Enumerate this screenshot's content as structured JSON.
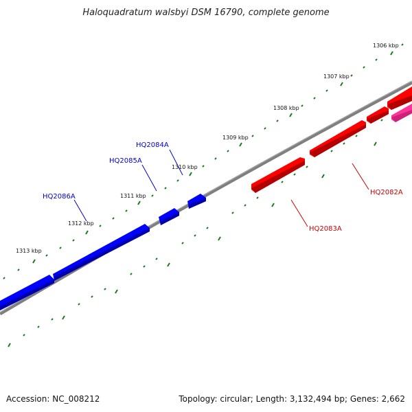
{
  "title": "Haloquadratum walsbyi DSM 16790, complete genome",
  "footer": {
    "accession": "Accession: NC_008212",
    "summary": "Topology: circular; Length: 3,132,494 bp; Genes: 2,662"
  },
  "ticks": [
    "1306 kbp",
    "1307 kbp",
    "1308 kbp",
    "1309 kbp",
    "1310 kbp",
    "1311 kbp",
    "1312 kbp",
    "1313 kbp"
  ],
  "genes": [
    {
      "id": "HQ2082A",
      "strand": "minus",
      "color": "#ff0000"
    },
    {
      "id": "HQ2083A",
      "strand": "minus",
      "color": "#ff0000"
    },
    {
      "id": "HQ2084A",
      "strand": "plus",
      "color": "#0000ff"
    },
    {
      "id": "HQ2085A",
      "strand": "plus",
      "color": "#0000ff"
    },
    {
      "id": "HQ2086A",
      "strand": "plus",
      "color": "#0000ff"
    }
  ],
  "colors": {
    "backbone": "#7f7f7f",
    "tick": "#1a7a1a",
    "plus_strand": "#0000ff",
    "minus_strand": "#ff0000",
    "other_feature": "#ff3399"
  }
}
